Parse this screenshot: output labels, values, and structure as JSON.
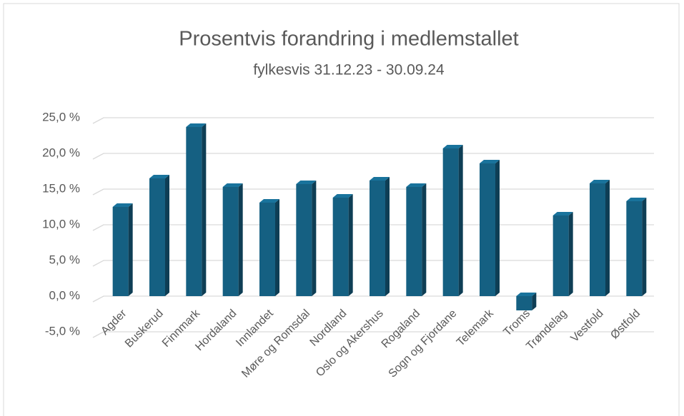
{
  "chart_data": {
    "type": "bar3d",
    "title": "Prosentvis forandring i medlemstallet",
    "subtitle": "fylkesvis 31.12.23 - 30.09.24",
    "categories": [
      "Agder",
      "Buskerud",
      "Finnmark",
      "Hordaland",
      "Innlandet",
      "Møre og Romsdal",
      "Nordland",
      "Oslo og Akershus",
      "Rogaland",
      "Sogn og Fjordane",
      "Telemark",
      "Troms",
      "Trøndelag",
      "Vestfold",
      "Østfold"
    ],
    "values": [
      12.5,
      16.5,
      23.7,
      15.3,
      13.1,
      15.7,
      13.8,
      16.2,
      15.3,
      20.7,
      18.6,
      -2.0,
      11.3,
      15.8,
      13.3
    ],
    "color": "#156082",
    "ylim": [
      -5,
      25
    ],
    "yticks": [
      {
        "value": -5,
        "label": "-5,0 %"
      },
      {
        "value": 0,
        "label": "0,0 %"
      },
      {
        "value": 5,
        "label": "5,0 %"
      },
      {
        "value": 10,
        "label": "10,0 %"
      },
      {
        "value": 15,
        "label": "15,0 %"
      },
      {
        "value": 20,
        "label": "20,0 %"
      },
      {
        "value": 25,
        "label": "25,0 %"
      }
    ],
    "grid": true
  }
}
